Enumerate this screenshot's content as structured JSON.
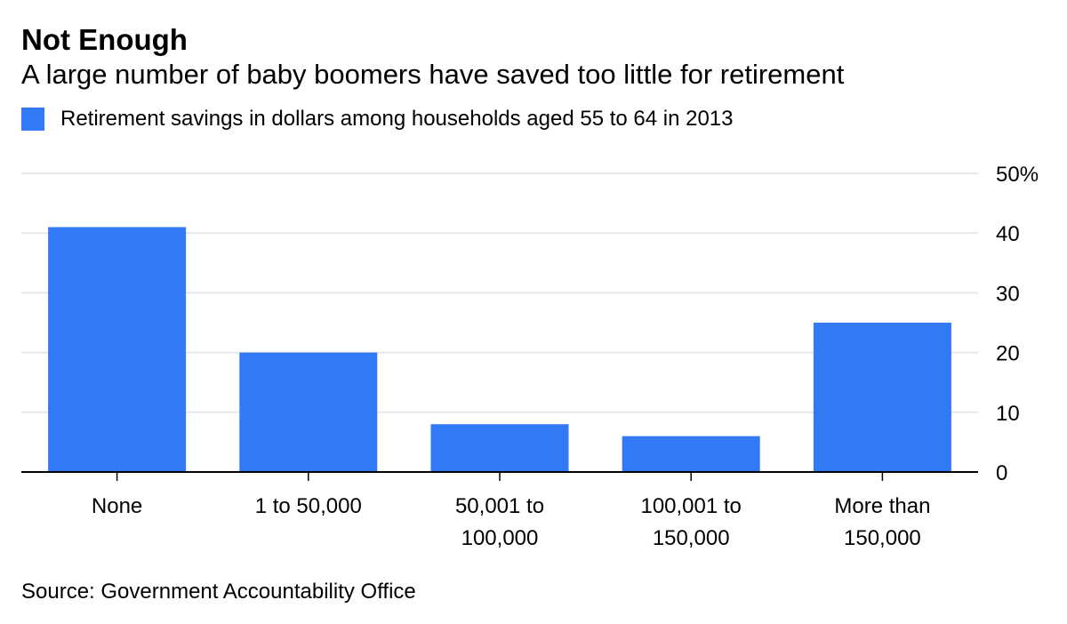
{
  "header": {
    "title": "Not Enough",
    "subtitle": "A large number of baby boomers have saved too little for retirement"
  },
  "legend": {
    "label": "Retirement savings in dollars among households aged 55 to 64 in 2013"
  },
  "footer": {
    "source": "Source: Government Accountability Office"
  },
  "colors": {
    "bar": "#3279f6",
    "grid": "#e8e8e8",
    "axis": "#000000"
  },
  "chart_data": {
    "type": "bar",
    "title": "Not Enough",
    "subtitle": "A large number of baby boomers have saved too little for retirement",
    "categories": [
      [
        "None"
      ],
      [
        "1 to 50,000"
      ],
      [
        "50,001 to",
        "100,000"
      ],
      [
        "100,001 to",
        "150,000"
      ],
      [
        "More than",
        "150,000"
      ]
    ],
    "series": [
      {
        "name": "Retirement savings in dollars among households aged 55 to 64 in 2013",
        "values": [
          41,
          20,
          8,
          6,
          25
        ]
      }
    ],
    "xlabel": "",
    "ylabel": "",
    "ylim": [
      0,
      50
    ],
    "yticks": [
      {
        "value": 0,
        "label": "0"
      },
      {
        "value": 10,
        "label": "10"
      },
      {
        "value": 20,
        "label": "20"
      },
      {
        "value": 30,
        "label": "30"
      },
      {
        "value": 40,
        "label": "40"
      },
      {
        "value": 50,
        "label": "50%"
      }
    ],
    "y_axis_side": "right",
    "grid": true,
    "legend_position": "top-left"
  }
}
